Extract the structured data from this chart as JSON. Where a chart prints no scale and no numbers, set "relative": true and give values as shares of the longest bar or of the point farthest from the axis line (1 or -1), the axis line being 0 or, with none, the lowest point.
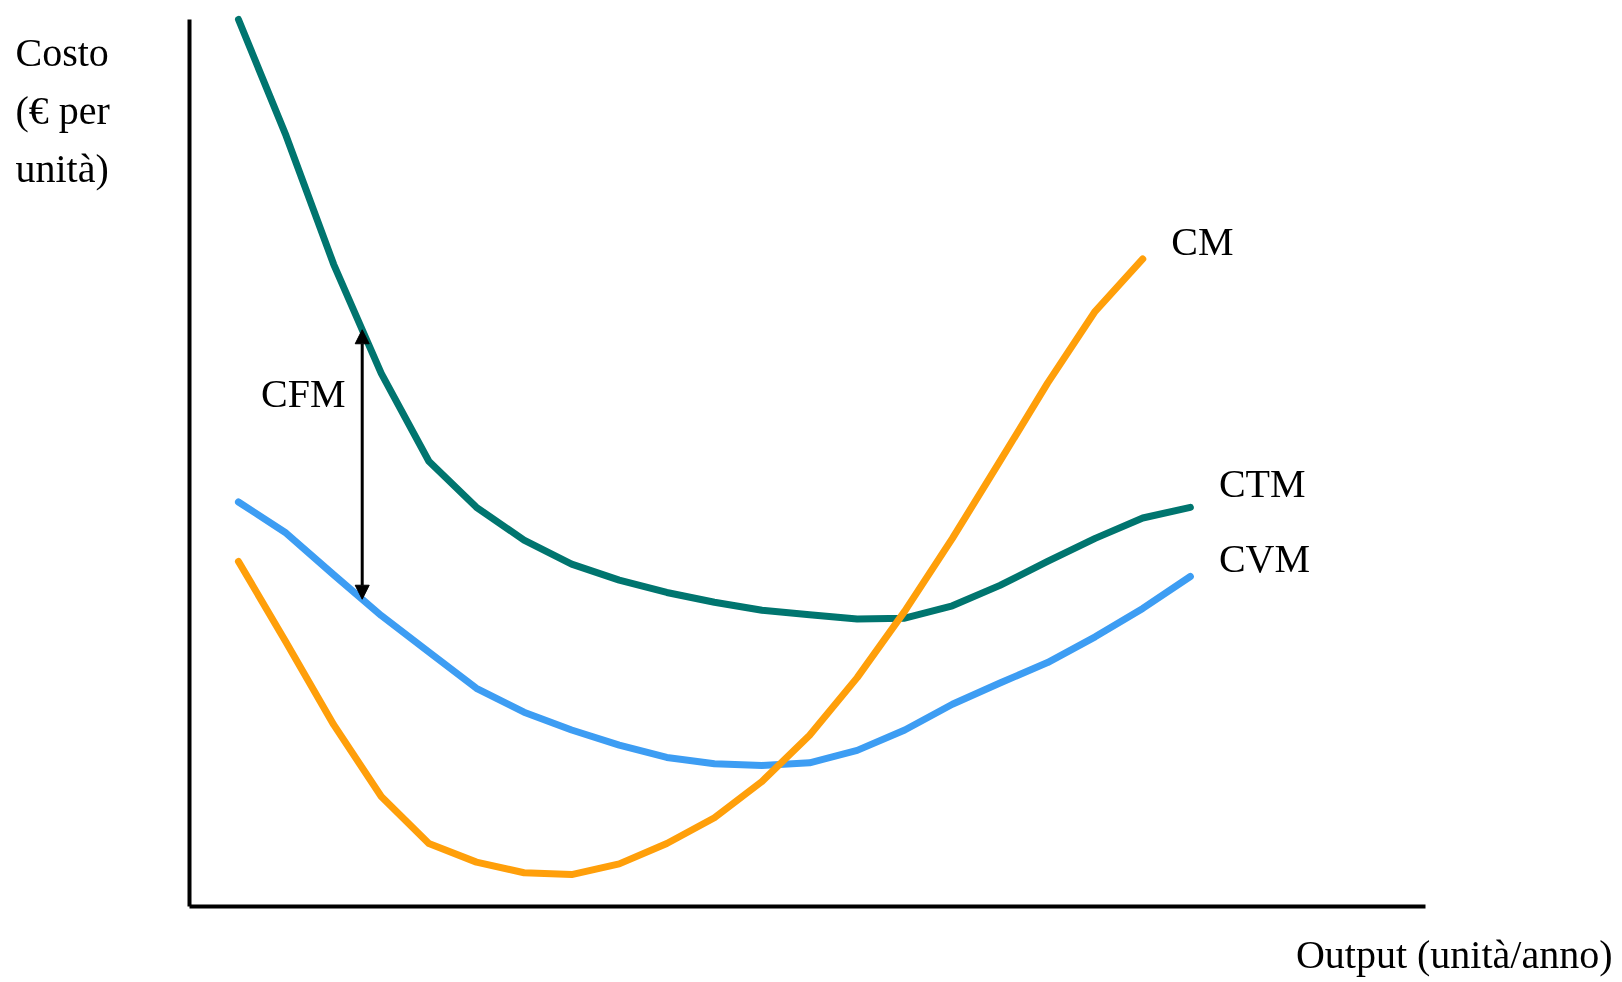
{
  "chart_data": {
    "type": "line",
    "relative": true,
    "xlabel": "Output (unità/anno)",
    "ylabel": "Costo (€ per unità)",
    "categories": [
      null,
      null,
      null,
      null,
      null,
      null,
      null,
      null,
      null,
      null,
      null,
      null,
      null,
      null,
      null,
      null,
      null,
      null,
      null,
      null,
      null
    ],
    "marker": "none",
    "line_style": "solid",
    "annotations": [
      "CFM"
    ],
    "series": [
      {
        "name": "CTM",
        "color": "#00756f",
        "values": [
          1.0,
          0.869,
          0.724,
          0.601,
          0.502,
          0.45,
          0.413,
          0.386,
          0.368,
          0.354,
          0.343,
          0.334,
          0.329,
          0.324,
          0.325,
          0.339,
          0.362,
          0.389,
          0.415,
          0.438,
          0.45
        ]
      },
      {
        "name": "CVM",
        "color": "#3d9df3",
        "values": [
          0.456,
          0.421,
          0.374,
          0.328,
          0.287,
          0.246,
          0.219,
          0.199,
          0.182,
          0.168,
          0.161,
          0.159,
          0.162,
          0.176,
          0.199,
          0.228,
          0.252,
          0.275,
          0.304,
          0.336,
          0.372
        ]
      },
      {
        "name": "CM",
        "color": "#ff9f0a",
        "values": [
          0.389,
          0.298,
          0.205,
          0.124,
          0.071,
          0.05,
          0.038,
          0.036,
          0.048,
          0.071,
          0.1,
          0.141,
          0.193,
          0.258,
          0.333,
          0.415,
          0.502,
          0.59,
          0.671,
          0.73,
          null
        ]
      }
    ]
  }
}
